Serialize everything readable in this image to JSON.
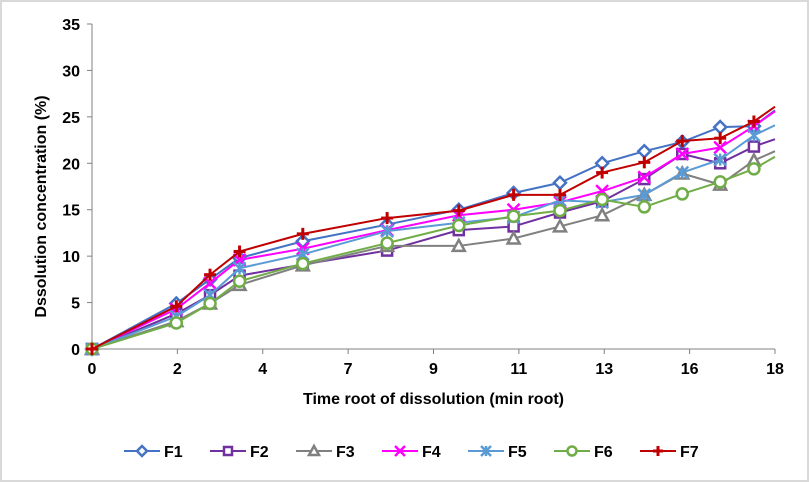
{
  "chart_data": {
    "type": "line",
    "title": "",
    "xlabel": "Time root of dissolution (min root)",
    "ylabel": "Dssolution concentration (%)",
    "x_tick_labels": [
      "0",
      "2",
      "4",
      "7",
      "9",
      "11",
      "13",
      "16",
      "18"
    ],
    "x": [
      0,
      2,
      2.8,
      3.5,
      5.0,
      7.0,
      8.7,
      10.0,
      11.1,
      12.1,
      13.1,
      14.0,
      14.9,
      15.7,
      16.2
    ],
    "ylim": [
      0,
      35
    ],
    "y_ticks": [
      0,
      5,
      10,
      15,
      20,
      25,
      30,
      35
    ],
    "grid": false,
    "legend_position": "bottom",
    "series": [
      {
        "name": "F1",
        "color": "#4472C4",
        "marker": "diamond",
        "values": [
          0,
          4.9,
          7.5,
          9.8,
          11.6,
          13.4,
          15.0,
          16.8,
          17.9,
          20.0,
          21.3,
          22.3,
          23.9,
          24.0,
          25.7
        ]
      },
      {
        "name": "F2",
        "color": "#7030A0",
        "marker": "square",
        "values": [
          0,
          3.8,
          5.8,
          7.9,
          9.1,
          10.6,
          12.8,
          13.2,
          14.7,
          15.9,
          18.3,
          21.0,
          20.0,
          21.8,
          22.6
        ]
      },
      {
        "name": "F3",
        "color": "#808080",
        "marker": "triangle",
        "values": [
          0,
          3.0,
          4.9,
          6.9,
          9.0,
          11.1,
          11.1,
          11.9,
          13.2,
          14.4,
          16.6,
          18.9,
          17.7,
          20.3,
          21.3
        ]
      },
      {
        "name": "F4",
        "color": "#FF00FF",
        "marker": "x",
        "values": [
          0,
          4.3,
          7.1,
          9.6,
          10.8,
          12.8,
          14.4,
          15.0,
          15.8,
          17.0,
          18.5,
          21.0,
          21.7,
          24.0,
          25.6
        ]
      },
      {
        "name": "F5",
        "color": "#5B9BD5",
        "marker": "star",
        "values": [
          0,
          3.5,
          5.8,
          8.7,
          10.2,
          12.7,
          13.6,
          14.2,
          16.0,
          15.8,
          16.6,
          19.0,
          20.4,
          23.0,
          24.1
        ]
      },
      {
        "name": "F6",
        "color": "#70AD47",
        "marker": "circle",
        "values": [
          0,
          2.8,
          4.9,
          7.3,
          9.2,
          11.4,
          13.3,
          14.3,
          14.9,
          16.1,
          15.3,
          16.7,
          18.0,
          19.4,
          20.7
        ]
      },
      {
        "name": "F7",
        "color": "#C00000",
        "marker": "plus",
        "values": [
          0,
          4.6,
          8.0,
          10.5,
          12.4,
          14.1,
          14.9,
          16.6,
          16.6,
          19.0,
          20.1,
          22.4,
          22.7,
          24.5,
          26.1
        ]
      }
    ]
  }
}
